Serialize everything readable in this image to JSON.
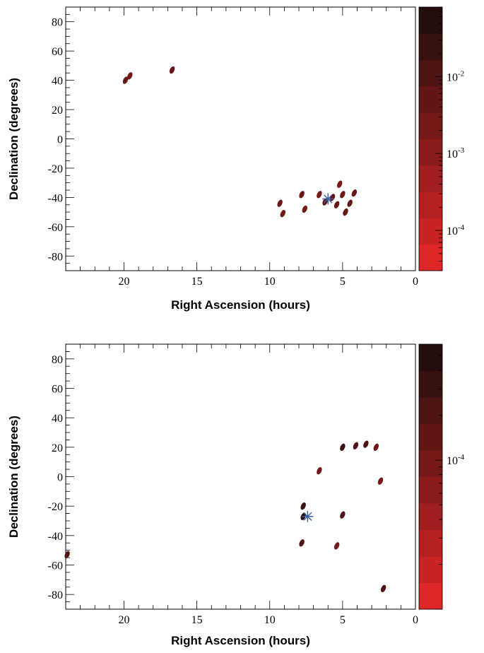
{
  "chart_data": [
    {
      "type": "heatmap",
      "xlabel": "Right Ascension (hours)",
      "ylabel": "Declination (degrees)",
      "xlim": [
        24,
        0
      ],
      "ylim": [
        -90,
        90
      ],
      "x_ticks": [
        "20",
        "15",
        "10",
        "5",
        "0"
      ],
      "y_ticks": [
        "80",
        "60",
        "40",
        "20",
        "0",
        "-20",
        "-40",
        "-60",
        "-80"
      ],
      "colorbar": {
        "scale": "log",
        "range": [
          3e-05,
          0.08
        ],
        "bands": 10,
        "tick_labels": [
          {
            "value": 0.01,
            "base": "10",
            "exp": "-2"
          },
          {
            "value": 0.001,
            "base": "10",
            "exp": "-3"
          },
          {
            "value": 0.0001,
            "base": "10",
            "exp": "-4"
          }
        ]
      },
      "marker": {
        "ra": 6.0,
        "dec": -41,
        "symbol": "asterisk",
        "color": "#3a5ea8"
      },
      "regions": [
        {
          "ra": 19.9,
          "dec": 40,
          "level": 0.004
        },
        {
          "ra": 19.6,
          "dec": 43,
          "level": 0.003
        },
        {
          "ra": 16.7,
          "dec": 47,
          "level": 0.004
        },
        {
          "ra": 9.3,
          "dec": -44,
          "level": 0.003
        },
        {
          "ra": 9.1,
          "dec": -51,
          "level": 0.003
        },
        {
          "ra": 7.8,
          "dec": -38,
          "level": 0.004
        },
        {
          "ra": 7.6,
          "dec": -48,
          "level": 0.003
        },
        {
          "ra": 6.6,
          "dec": -38,
          "level": 0.002
        },
        {
          "ra": 6.2,
          "dec": -43,
          "level": 0.006
        },
        {
          "ra": 5.7,
          "dec": -40,
          "level": 0.005
        },
        {
          "ra": 5.4,
          "dec": -45,
          "level": 0.004
        },
        {
          "ra": 5.2,
          "dec": -31,
          "level": 0.002
        },
        {
          "ra": 5.0,
          "dec": -38,
          "level": 0.003
        },
        {
          "ra": 4.8,
          "dec": -50,
          "level": 0.004
        },
        {
          "ra": 4.5,
          "dec": -44,
          "level": 0.005
        },
        {
          "ra": 4.2,
          "dec": -37,
          "level": 0.004
        }
      ]
    },
    {
      "type": "heatmap",
      "xlabel": "Right Ascension (hours)",
      "ylabel": "Declination (degrees)",
      "xlim": [
        24,
        0
      ],
      "ylim": [
        -90,
        90
      ],
      "x_ticks": [
        "20",
        "15",
        "10",
        "5",
        "0"
      ],
      "y_ticks": [
        "80",
        "60",
        "40",
        "20",
        "0",
        "-20",
        "-40",
        "-60",
        "-80"
      ],
      "colorbar": {
        "scale": "log",
        "range": [
          1e-05,
          0.0006
        ],
        "bands": 10,
        "tick_labels": [
          {
            "value": 0.0001,
            "base": "10",
            "exp": "-4"
          }
        ]
      },
      "marker": {
        "ra": 7.4,
        "dec": -27,
        "symbol": "asterisk",
        "color": "#3a5ea8"
      },
      "regions": [
        {
          "ra": 23.9,
          "dec": -53,
          "level": 0.0002
        },
        {
          "ra": 7.7,
          "dec": -20,
          "level": 0.0003
        },
        {
          "ra": 7.7,
          "dec": -27,
          "level": 0.0004
        },
        {
          "ra": 7.8,
          "dec": -45,
          "level": 0.0002
        },
        {
          "ra": 6.6,
          "dec": 4,
          "level": 0.0001
        },
        {
          "ra": 5.0,
          "dec": 20,
          "level": 0.0003
        },
        {
          "ra": 4.1,
          "dec": 21,
          "level": 0.0002
        },
        {
          "ra": 3.4,
          "dec": 22,
          "level": 0.0002
        },
        {
          "ra": 2.7,
          "dec": 20,
          "level": 0.0001
        },
        {
          "ra": 5.0,
          "dec": -26,
          "level": 0.0002
        },
        {
          "ra": 5.4,
          "dec": -47,
          "level": 0.0001
        },
        {
          "ra": 2.4,
          "dec": -3,
          "level": 0.0001
        },
        {
          "ra": 2.2,
          "dec": -76,
          "level": 0.0002
        }
      ]
    }
  ]
}
